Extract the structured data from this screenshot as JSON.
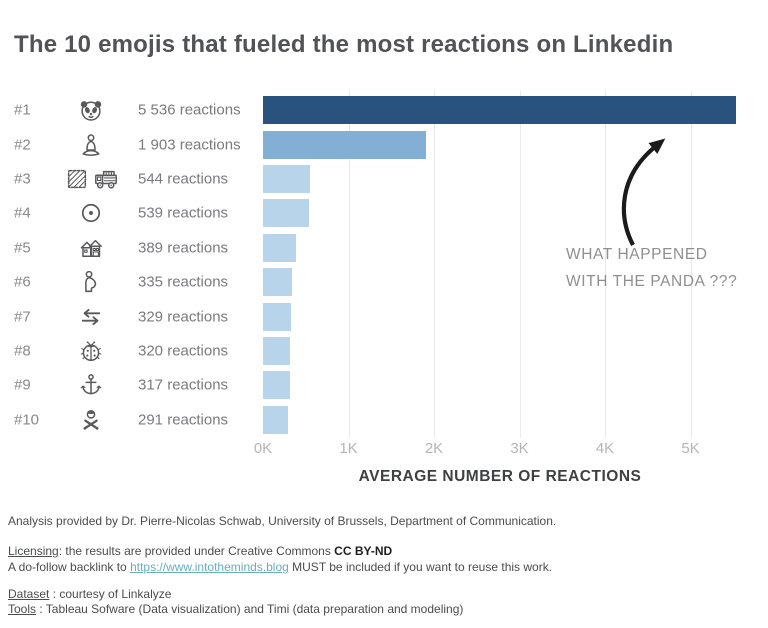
{
  "page": {
    "title": "The 10 emojis that fueled the most reactions on Linkedin"
  },
  "chart_data": {
    "type": "bar",
    "orientation": "horizontal",
    "title": "The 10 emojis that fueled the most reactions on Linkedin",
    "xlabel": "AVERAGE NUMBER OF REACTIONS",
    "xlim": [
      0,
      5536
    ],
    "x_ticks": [
      "0K",
      "1K",
      "2K",
      "3K",
      "4K",
      "5K"
    ],
    "grid": "vertical-light",
    "legend": "none",
    "rows": [
      {
        "rank": "#1",
        "icons": [
          "panda-emoji"
        ],
        "label": "5 536 reactions",
        "value": 5536,
        "bar_color": "#2a527f"
      },
      {
        "rank": "#2",
        "icons": [
          "lotus-person-emoji"
        ],
        "label": "1 903 reactions",
        "value": 1903,
        "bar_color": "#84afd5"
      },
      {
        "rank": "#3",
        "icons": [
          "waffle-emoji",
          "fire-engine-emoji"
        ],
        "label": "544 reactions",
        "value": 544,
        "bar_color": "#b7d4eb"
      },
      {
        "rank": "#4",
        "icons": [
          "circled-dot-emoji"
        ],
        "label": "539 reactions",
        "value": 539,
        "bar_color": "#b7d4eb"
      },
      {
        "rank": "#5",
        "icons": [
          "houses-emoji"
        ],
        "label": "389 reactions",
        "value": 389,
        "bar_color": "#b7d4eb"
      },
      {
        "rank": "#6",
        "icons": [
          "pregnant-woman-emoji"
        ],
        "label": "335 reactions",
        "value": 335,
        "bar_color": "#b7d4eb"
      },
      {
        "rank": "#7",
        "icons": [
          "left-right-arrows-emoji"
        ],
        "label": "329 reactions",
        "value": 329,
        "bar_color": "#b7d4eb"
      },
      {
        "rank": "#8",
        "icons": [
          "ladybug-emoji"
        ],
        "label": "320 reactions",
        "value": 320,
        "bar_color": "#b7d4eb"
      },
      {
        "rank": "#9",
        "icons": [
          "anchor-emoji"
        ],
        "label": "317 reactions",
        "value": 317,
        "bar_color": "#b7d4eb"
      },
      {
        "rank": "#10",
        "icons": [
          "no-gesture-emoji"
        ],
        "label": "291 reactions",
        "value": 291,
        "bar_color": "#b7d4eb"
      }
    ],
    "annotation": {
      "line1": "WHAT HAPPENED",
      "line2": "WITH THE PANDA ???"
    }
  },
  "footer": {
    "analysis": "Analysis provided by Dr. Pierre-Nicolas Schwab, University of Brussels, Department of Communication.",
    "licensing": {
      "label": "Licensing",
      "text": ": the results are provided under Creative Commons ",
      "bold": "CC BY-ND"
    },
    "backlink": {
      "pre": "A do-follow backlink to ",
      "link": "https://www.intotheminds.blog",
      "post": " MUST be included if you want to reuse this work."
    },
    "dataset": {
      "label": "Dataset",
      "text": " : courtesy of Linkalyze"
    },
    "tools": {
      "label": "Tools",
      "text": " : Tableau Sofware (Data visualization) and Timi (data preparation and modeling)"
    }
  },
  "colors": {
    "bar_primary": "#2a527f",
    "bar_secondary": "#84afd5",
    "bar_light": "#b7d4eb",
    "gridline": "#eaeaea",
    "annotation_arrow": "#1b1b1b",
    "link": "#68aebf",
    "title_text": "#515356"
  }
}
